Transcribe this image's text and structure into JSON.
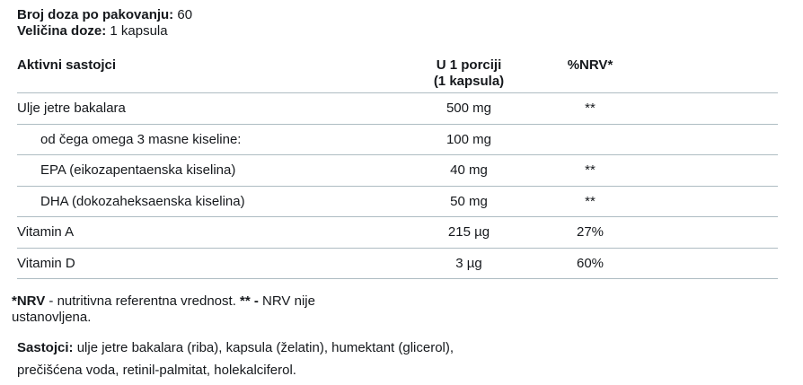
{
  "top": {
    "servings_label": "Broj doza po pakovanju:",
    "servings_value": " 60",
    "serving_size_label": "Veličina doze:",
    "serving_size_value": " 1 kapsula"
  },
  "table": {
    "headers": {
      "ingredients": "Aktivni sastojci",
      "per_serving_line1": "U 1 porciji",
      "per_serving_line2": "(1 kapsula)",
      "nrv": "%NRV*"
    },
    "rows": [
      {
        "name": "Ulje jetre bakalara",
        "indent": false,
        "amount": "500 mg",
        "nrv": "**"
      },
      {
        "name": "od čega omega 3 masne kiseline:",
        "indent": true,
        "amount": "100 mg",
        "nrv": ""
      },
      {
        "name": "EPA (eikozapentaenska kiselina)",
        "indent": true,
        "amount": "40 mg",
        "nrv": "**"
      },
      {
        "name": "DHA (dokozaheksaenska kiselina)",
        "indent": true,
        "amount": "50 mg",
        "nrv": "**"
      },
      {
        "name": "Vitamin A",
        "indent": false,
        "amount": "215 µg",
        "nrv": "27%"
      },
      {
        "name": "Vitamin D",
        "indent": false,
        "amount": "3 µg",
        "nrv": "60%"
      }
    ]
  },
  "footnote": {
    "nrv_bold": "*NRV",
    "nrv_text": " - nutritivna referentna vrednost. ",
    "asterisks_bold": "** -",
    "line1_end": " NRV nije",
    "line2": "ustanovljena."
  },
  "ingredients": {
    "label": "Sastojci:",
    "line1": " ulje jetre bakalara (riba), kapsula (želatin), humektant (glicerol),",
    "line2": "prečišćena voda, retinil-palmitat, holekalciferol."
  },
  "colors": {
    "text": "#15181c",
    "rule": "#aebcc2",
    "background": "#ffffff"
  }
}
